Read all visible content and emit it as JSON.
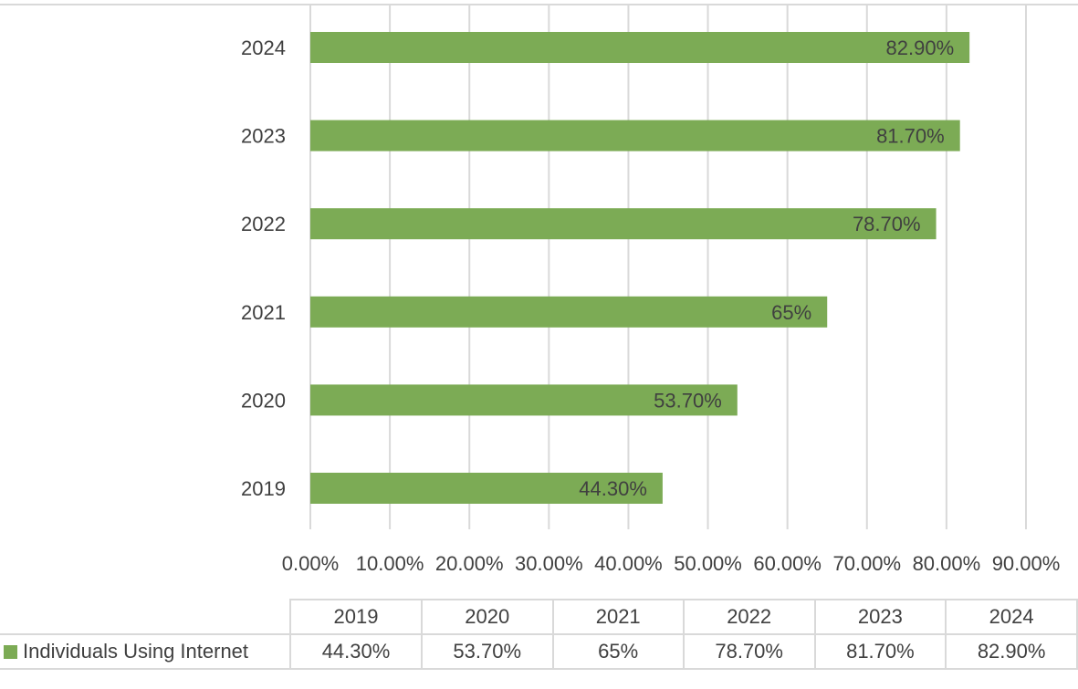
{
  "chart_data": {
    "type": "bar",
    "orientation": "horizontal",
    "categories": [
      "2024",
      "2023",
      "2022",
      "2021",
      "2020",
      "2019"
    ],
    "series": [
      {
        "name": "Individuals Using Internet",
        "values": [
          82.9,
          81.7,
          78.7,
          65.0,
          53.7,
          44.3
        ],
        "data_labels": [
          "82.90%",
          "81.70%",
          "78.70%",
          "65%",
          "53.70%",
          "44.30%"
        ],
        "color": "#7cab55"
      }
    ],
    "xlim": [
      0,
      90
    ],
    "x_ticks": [
      "0.00%",
      "10.00%",
      "20.00%",
      "30.00%",
      "40.00%",
      "50.00%",
      "60.00%",
      "70.00%",
      "80.00%",
      "90.00%"
    ],
    "grid": true,
    "gridline_color": "#d9d9d9",
    "title": "",
    "xlabel": "",
    "ylabel": "",
    "legend": "in data table"
  },
  "table": {
    "columns": [
      "2019",
      "2020",
      "2021",
      "2022",
      "2023",
      "2024"
    ],
    "row_label": "Individuals Using Internet",
    "values": [
      "44.30%",
      "53.70%",
      "65%",
      "78.70%",
      "81.70%",
      "82.90%"
    ]
  }
}
